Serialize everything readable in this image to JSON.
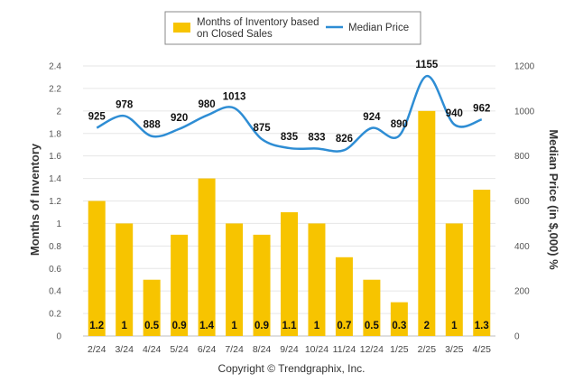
{
  "chart_data": {
    "type": "bar",
    "categories": [
      "2/24",
      "3/24",
      "4/24",
      "5/24",
      "6/24",
      "7/24",
      "8/24",
      "9/24",
      "10/24",
      "11/24",
      "12/24",
      "1/25",
      "2/25",
      "3/25",
      "4/25"
    ],
    "series": [
      {
        "name": "Months of Inventory based on Closed Sales",
        "type": "bar",
        "axis": "left",
        "color": "#F7C400",
        "values": [
          1.2,
          1,
          0.5,
          0.9,
          1.4,
          1,
          0.9,
          1.1,
          1,
          0.7,
          0.5,
          0.3,
          2,
          1,
          1.3
        ]
      },
      {
        "name": "Median Price",
        "type": "line",
        "axis": "right",
        "color": "#2E8DD4",
        "values": [
          925,
          978,
          888,
          920,
          980,
          1013,
          875,
          835,
          833,
          826,
          924,
          890,
          1155,
          940,
          962
        ]
      }
    ],
    "legend": {
      "bar_label_line1": "Months of Inventory based",
      "bar_label_line2": "on Closed Sales",
      "line_label": "Median Price",
      "position": "top-center"
    },
    "ylabel_left": "Months of Inventory",
    "ylabel_right": "Median Price (in $,000) %",
    "ylim_left": [
      0,
      2.4
    ],
    "ylim_right": [
      0,
      1200
    ],
    "yticks_left": [
      "0",
      "0.2",
      "0.4",
      "0.6",
      "0.8",
      "1",
      "1.2",
      "1.4",
      "1.6",
      "1.8",
      "2",
      "2.2",
      "2.4"
    ],
    "yticks_right": [
      "0",
      "200",
      "400",
      "600",
      "800",
      "1000",
      "1200"
    ],
    "grid": true,
    "copyright": "Copyright © Trendgraphix, Inc."
  }
}
